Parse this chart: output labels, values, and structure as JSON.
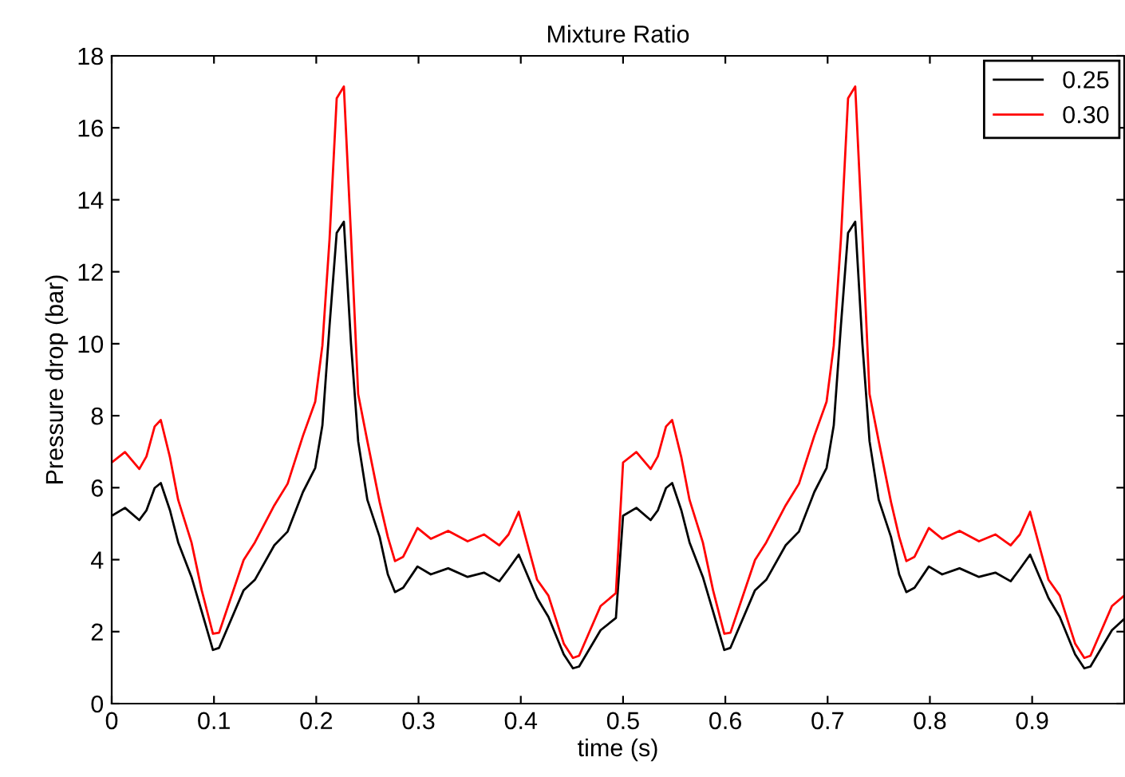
{
  "chart_data": {
    "type": "line",
    "title": "Mixture Ratio",
    "xlabel": "time (s)",
    "ylabel": "Pressure drop (bar)",
    "xlim": [
      0,
      0.99
    ],
    "ylim": [
      0,
      18
    ],
    "xticks": [
      0,
      0.1,
      0.2,
      0.3,
      0.4,
      0.5,
      0.6,
      0.7,
      0.8,
      0.9
    ],
    "yticks": [
      0,
      2,
      4,
      6,
      8,
      10,
      12,
      14,
      16,
      18
    ],
    "grid": false,
    "legend": "top right",
    "marker": "none",
    "line_style": "solid",
    "x": [
      0,
      0.013,
      0.027,
      0.034,
      0.042,
      0.048,
      0.057,
      0.065,
      0.078,
      0.088,
      0.099,
      0.105,
      0.129,
      0.14,
      0.159,
      0.172,
      0.187,
      0.199,
      0.206,
      0.213,
      0.22,
      0.227,
      0.234,
      0.241,
      0.25,
      0.262,
      0.27,
      0.277,
      0.285,
      0.299,
      0.312,
      0.329,
      0.348,
      0.364,
      0.379,
      0.388,
      0.398,
      0.416,
      0.427,
      0.442,
      0.451,
      0.457,
      0.478,
      0.493,
      0.5,
      0.513,
      0.527,
      0.534,
      0.542,
      0.548,
      0.557,
      0.565,
      0.578,
      0.588,
      0.599,
      0.605,
      0.629,
      0.64,
      0.659,
      0.672,
      0.687,
      0.699,
      0.706,
      0.713,
      0.72,
      0.727,
      0.734,
      0.741,
      0.75,
      0.762,
      0.77,
      0.777,
      0.785,
      0.799,
      0.812,
      0.829,
      0.848,
      0.864,
      0.879,
      0.888,
      0.898,
      0.916,
      0.927,
      0.942,
      0.951,
      0.957,
      0.978,
      0.99
    ],
    "series": [
      {
        "name": "0.25",
        "color": "#000000",
        "values": [
          5.22,
          5.44,
          5.1,
          5.37,
          5.99,
          6.13,
          5.37,
          4.48,
          3.52,
          2.56,
          1.49,
          1.55,
          3.15,
          3.44,
          4.4,
          4.78,
          5.88,
          6.55,
          7.73,
          10.5,
          13.08,
          13.39,
          10.0,
          7.29,
          5.66,
          4.63,
          3.59,
          3.1,
          3.22,
          3.81,
          3.59,
          3.76,
          3.52,
          3.64,
          3.4,
          3.74,
          4.14,
          2.93,
          2.41,
          1.37,
          0.98,
          1.03,
          2.04,
          2.38,
          5.22,
          5.44,
          5.1,
          5.37,
          5.99,
          6.13,
          5.37,
          4.48,
          3.52,
          2.56,
          1.49,
          1.55,
          3.15,
          3.44,
          4.4,
          4.78,
          5.88,
          6.55,
          7.73,
          10.5,
          13.08,
          13.39,
          10.0,
          7.29,
          5.66,
          4.63,
          3.59,
          3.1,
          3.22,
          3.81,
          3.59,
          3.76,
          3.52,
          3.64,
          3.4,
          3.74,
          4.14,
          2.93,
          2.41,
          1.37,
          0.98,
          1.03,
          2.04,
          2.35
        ]
      },
      {
        "name": "0.30",
        "color": "#ff0000",
        "values": [
          6.7,
          6.99,
          6.52,
          6.87,
          7.7,
          7.88,
          6.84,
          5.66,
          4.48,
          3.15,
          1.94,
          1.97,
          3.99,
          4.48,
          5.51,
          6.11,
          7.44,
          8.39,
          9.95,
          12.9,
          16.82,
          17.15,
          13.0,
          8.6,
          7.29,
          5.6,
          4.63,
          3.96,
          4.08,
          4.88,
          4.58,
          4.8,
          4.51,
          4.7,
          4.4,
          4.7,
          5.33,
          3.44,
          3.0,
          1.67,
          1.27,
          1.33,
          2.71,
          3.07,
          6.7,
          6.99,
          6.52,
          6.87,
          7.7,
          7.88,
          6.84,
          5.66,
          4.48,
          3.15,
          1.94,
          1.97,
          3.99,
          4.48,
          5.51,
          6.11,
          7.44,
          8.39,
          9.95,
          12.9,
          16.82,
          17.15,
          13.0,
          8.6,
          7.29,
          5.6,
          4.63,
          3.96,
          4.08,
          4.88,
          4.58,
          4.8,
          4.51,
          4.7,
          4.4,
          4.7,
          5.33,
          3.44,
          3.0,
          1.67,
          1.27,
          1.33,
          2.71,
          3.0
        ]
      }
    ]
  }
}
